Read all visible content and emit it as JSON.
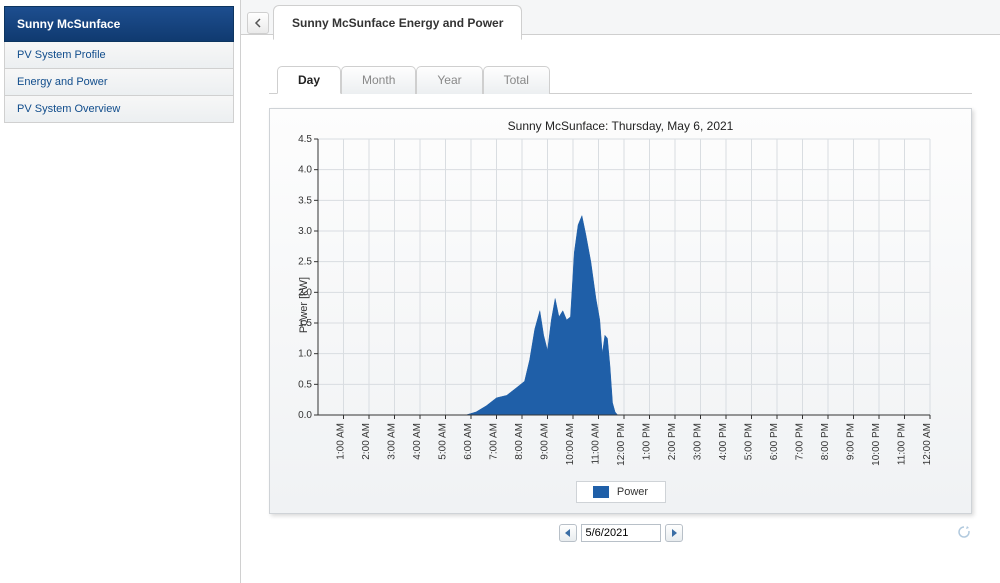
{
  "sidebar": {
    "title": "Sunny McSunface",
    "items": [
      {
        "label": "PV System Profile"
      },
      {
        "label": "Energy and Power"
      },
      {
        "label": "PV System Overview"
      }
    ]
  },
  "page": {
    "tab_title": "Sunny McSunface Energy and Power"
  },
  "range_tabs": [
    {
      "label": "Day"
    },
    {
      "label": "Month"
    },
    {
      "label": "Year"
    },
    {
      "label": "Total"
    }
  ],
  "active_range_tab": 0,
  "date_nav": {
    "value": "5/6/2021"
  },
  "chart": {
    "type": "area",
    "title": "Sunny McSunface: Thursday, May 6, 2021",
    "ylabel": "Power [kW]",
    "legend_label": "Power",
    "series_color": "#1f5fa8",
    "background_gradient_top": "#fdfdfd",
    "background_gradient_bottom": "#f0f2f4",
    "grid_color": "#d9dde1",
    "axis_color": "#333333",
    "text_color": "#333333",
    "title_fontsize": 12,
    "axis_fontsize": 10,
    "ylim": [
      0,
      4.5
    ],
    "ytick_step": 0.5,
    "x_categories": [
      "1:00 AM",
      "2:00 AM",
      "3:00 AM",
      "4:00 AM",
      "5:00 AM",
      "6:00 AM",
      "7:00 AM",
      "8:00 AM",
      "9:00 AM",
      "10:00 AM",
      "11:00 AM",
      "12:00 PM",
      "1:00 PM",
      "2:00 PM",
      "3:00 PM",
      "4:00 PM",
      "5:00 PM",
      "6:00 PM",
      "7:00 PM",
      "8:00 PM",
      "9:00 PM",
      "10:00 PM",
      "11:00 PM",
      "12:00 AM"
    ],
    "data": [
      {
        "x": 0.0,
        "y": 0.0
      },
      {
        "x": 5.8,
        "y": 0.0
      },
      {
        "x": 6.2,
        "y": 0.05
      },
      {
        "x": 6.6,
        "y": 0.15
      },
      {
        "x": 7.0,
        "y": 0.28
      },
      {
        "x": 7.4,
        "y": 0.32
      },
      {
        "x": 7.8,
        "y": 0.45
      },
      {
        "x": 8.1,
        "y": 0.55
      },
      {
        "x": 8.3,
        "y": 0.9
      },
      {
        "x": 8.5,
        "y": 1.4
      },
      {
        "x": 8.7,
        "y": 1.7
      },
      {
        "x": 8.85,
        "y": 1.3
      },
      {
        "x": 9.0,
        "y": 1.05
      },
      {
        "x": 9.15,
        "y": 1.55
      },
      {
        "x": 9.3,
        "y": 1.9
      },
      {
        "x": 9.45,
        "y": 1.6
      },
      {
        "x": 9.6,
        "y": 1.7
      },
      {
        "x": 9.75,
        "y": 1.55
      },
      {
        "x": 9.9,
        "y": 1.6
      },
      {
        "x": 10.05,
        "y": 2.65
      },
      {
        "x": 10.2,
        "y": 3.1
      },
      {
        "x": 10.35,
        "y": 3.25
      },
      {
        "x": 10.5,
        "y": 2.95
      },
      {
        "x": 10.7,
        "y": 2.5
      },
      {
        "x": 10.9,
        "y": 1.9
      },
      {
        "x": 11.05,
        "y": 1.55
      },
      {
        "x": 11.15,
        "y": 1.0
      },
      {
        "x": 11.25,
        "y": 1.3
      },
      {
        "x": 11.35,
        "y": 1.25
      },
      {
        "x": 11.45,
        "y": 0.8
      },
      {
        "x": 11.55,
        "y": 0.2
      },
      {
        "x": 11.65,
        "y": 0.05
      },
      {
        "x": 11.75,
        "y": 0.0
      }
    ]
  }
}
